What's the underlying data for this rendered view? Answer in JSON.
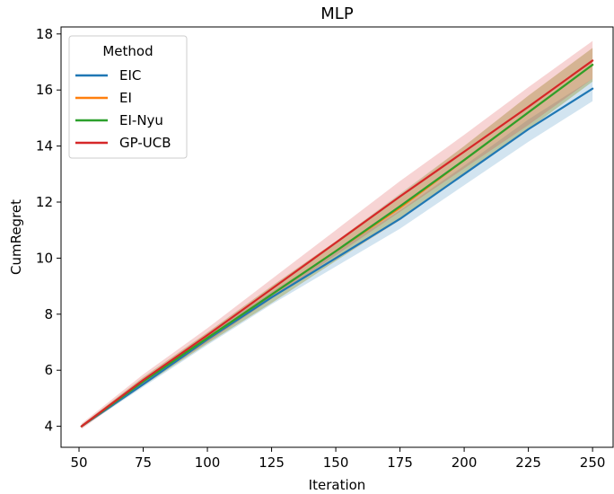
{
  "chart_data": {
    "type": "line",
    "title": "MLP",
    "xlabel": "Iteration",
    "ylabel": "CumRegret",
    "xlim": [
      43,
      258
    ],
    "ylim": [
      3.25,
      18.25
    ],
    "xticks": [
      50,
      75,
      100,
      125,
      150,
      175,
      200,
      225,
      250
    ],
    "yticks": [
      4,
      6,
      8,
      10,
      12,
      14,
      16,
      18
    ],
    "grid": false,
    "legend": {
      "title": "Method",
      "placement": "top-left"
    },
    "x": [
      51,
      75,
      100,
      125,
      150,
      175,
      200,
      225,
      250
    ],
    "series": [
      {
        "name": "EIC",
        "color": "#1f77b4",
        "values": [
          4.0,
          5.5,
          7.1,
          8.6,
          10.0,
          11.4,
          13.0,
          14.6,
          16.05
        ],
        "lower": [
          3.95,
          5.4,
          6.9,
          8.35,
          9.7,
          11.05,
          12.6,
          14.15,
          15.6
        ],
        "upper": [
          4.05,
          5.6,
          7.25,
          8.8,
          10.25,
          11.7,
          13.3,
          14.95,
          16.4
        ]
      },
      {
        "name": "EI",
        "color": "#ff7f0e",
        "values": [
          4.0,
          5.6,
          7.15,
          8.7,
          10.25,
          11.8,
          13.5,
          15.2,
          16.9
        ],
        "lower": [
          3.95,
          5.45,
          6.95,
          8.4,
          9.9,
          11.35,
          13.0,
          14.6,
          16.3
        ],
        "upper": [
          4.05,
          5.75,
          7.35,
          9.0,
          10.6,
          12.25,
          14.0,
          15.8,
          17.5
        ]
      },
      {
        "name": "EI-Nyu",
        "color": "#2ca02c",
        "values": [
          4.0,
          5.6,
          7.15,
          8.7,
          10.25,
          11.85,
          13.5,
          15.2,
          16.9
        ],
        "lower": [
          3.95,
          5.45,
          6.95,
          8.4,
          9.9,
          11.4,
          13.0,
          14.6,
          16.3
        ],
        "upper": [
          4.05,
          5.75,
          7.35,
          9.0,
          10.6,
          12.3,
          14.0,
          15.8,
          17.5
        ]
      },
      {
        "name": "GP-UCB",
        "color": "#d62728",
        "values": [
          4.0,
          5.65,
          7.25,
          8.9,
          10.55,
          12.2,
          13.8,
          15.4,
          17.05
        ],
        "lower": [
          3.9,
          5.5,
          7.0,
          8.55,
          10.1,
          11.65,
          13.2,
          14.75,
          16.4
        ],
        "upper": [
          4.1,
          5.85,
          7.5,
          9.25,
          11.0,
          12.75,
          14.4,
          16.1,
          17.75
        ]
      }
    ]
  }
}
